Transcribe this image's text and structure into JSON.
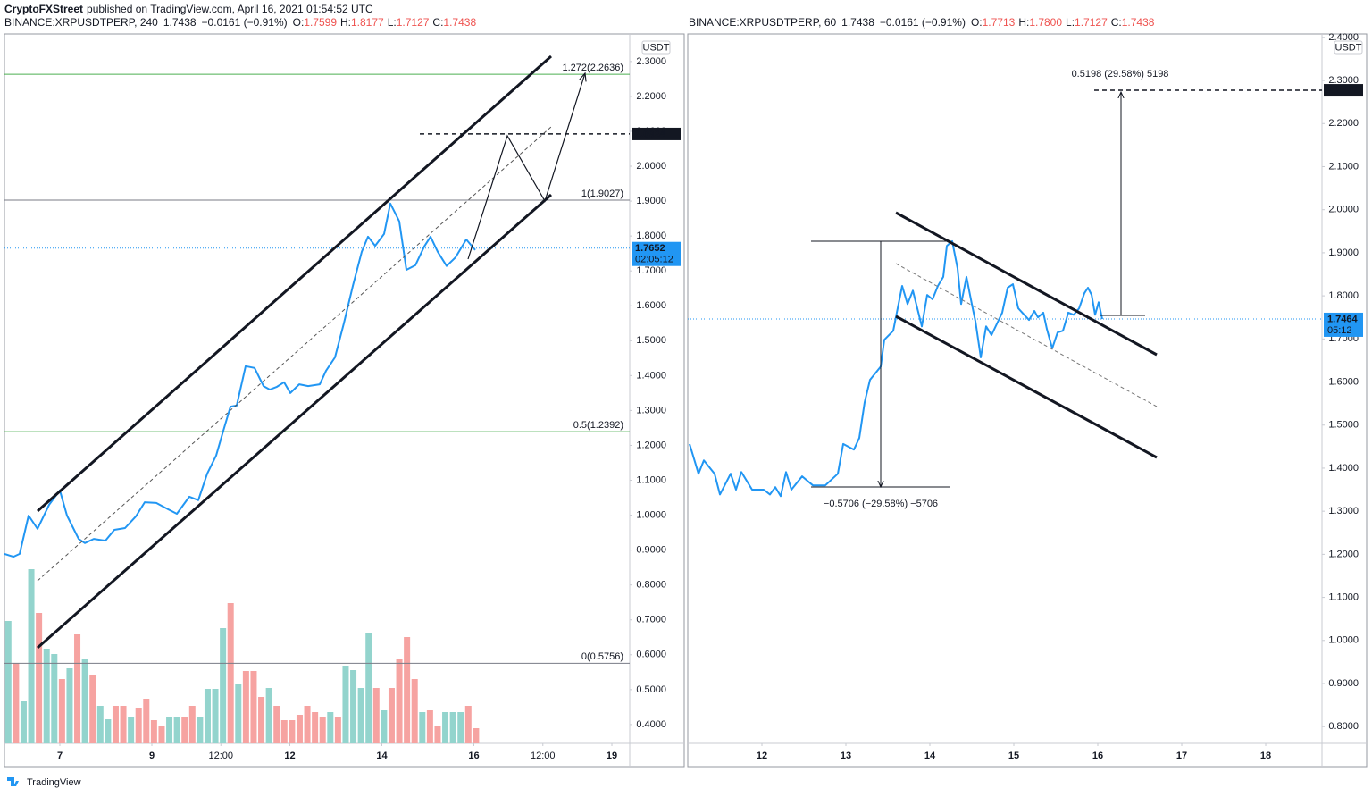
{
  "header": {
    "publisher": "CryptoFXStreet",
    "published": "published on TradingView.com, April 16, 2021 01:54:52 UTC"
  },
  "chart_data": [
    {
      "type": "line",
      "symbol": "BINANCE:XRPUSDTPERP, 240",
      "last": "1.7438",
      "change": "−0.0161 (−0.91%)",
      "ohlc": [
        {
          "label": "O:",
          "value": "1.7599"
        },
        {
          "label": "H:",
          "value": "1.8177"
        },
        {
          "label": "L:",
          "value": "1.7127"
        },
        {
          "label": "C:",
          "value": "1.7438"
        }
      ],
      "axis_unit": "USDT",
      "color": "#2196f3",
      "x": [
        5.796,
        5.99,
        6.126,
        6.32,
        6.515,
        6.767,
        7,
        7.155,
        7.408,
        7.544,
        7.738,
        7.99,
        8.184,
        8.417,
        8.65,
        8.845,
        9.097,
        9.35,
        9.544,
        9.816,
        10.01,
        10.204,
        10.398,
        10.553,
        10.709,
        10.845,
        11.039,
        11.233,
        11.427,
        11.563,
        11.718,
        11.874,
        12.01,
        12.204,
        12.398,
        12.65,
        12.786,
        12.981,
        13.175,
        13.369,
        13.563,
        13.699,
        13.854,
        14.049,
        14.184,
        14.379,
        14.534,
        14.728,
        14.922,
        15.058,
        15.214,
        15.408,
        15.602,
        15.835,
        16.029
      ],
      "values": [
        0.889,
        0.881,
        0.889,
        0.999,
        0.961,
        1.03,
        1.071,
        0.999,
        0.932,
        0.92,
        0.932,
        0.927,
        0.958,
        0.963,
        0.996,
        1.037,
        1.035,
        1.017,
        1.004,
        1.053,
        1.043,
        1.119,
        1.171,
        1.242,
        1.311,
        1.314,
        1.427,
        1.422,
        1.37,
        1.36,
        1.368,
        1.381,
        1.35,
        1.375,
        1.37,
        1.375,
        1.414,
        1.452,
        1.55,
        1.657,
        1.755,
        1.798,
        1.772,
        1.806,
        1.893,
        1.842,
        1.703,
        1.716,
        1.77,
        1.798,
        1.755,
        1.714,
        1.739,
        1.79,
        1.76
      ],
      "xlim": [
        5.796,
        19.388
      ],
      "xticks": [
        7,
        9,
        {
          "value": 10.5,
          "label": "12:00"
        },
        12,
        14,
        16,
        {
          "value": 17.5,
          "label": "12:00"
        },
        19
      ],
      "ylim": [
        0.346,
        2.379
      ],
      "yticks": [
        {
          "value": 0.4,
          "label": "0.4000"
        },
        {
          "value": 0.5,
          "label": "0.5000"
        },
        {
          "value": 0.6,
          "label": "0.6000"
        },
        {
          "value": 0.7,
          "label": "0.7000"
        },
        {
          "value": 0.8,
          "label": "0.8000"
        },
        {
          "value": 0.9,
          "label": "0.9000"
        },
        {
          "value": 1,
          "label": "1.0000"
        },
        {
          "value": 1.1,
          "label": "1.1000"
        },
        {
          "value": 1.2,
          "label": "1.2000"
        },
        {
          "value": 1.3,
          "label": "1.3000"
        },
        {
          "value": 1.4,
          "label": "1.4000"
        },
        {
          "value": 1.5,
          "label": "1.5000"
        },
        {
          "value": 1.6,
          "label": "1.6000"
        },
        {
          "value": 1.7,
          "label": "1.7000"
        },
        {
          "value": 1.8,
          "label": "1.8000"
        },
        {
          "value": 1.9,
          "label": "1.9000"
        },
        {
          "value": 2,
          "label": "2.0000"
        },
        {
          "value": 2.1,
          "label": "2.1000"
        },
        {
          "value": 2.2,
          "label": "2.2000"
        },
        {
          "value": 2.3,
          "label": "2.3000"
        }
      ],
      "levels": [
        {
          "label": "1.272(2.2636)",
          "value": 2.2636,
          "color": "#4caf50"
        },
        {
          "label": "1(1.9027)",
          "value": 1.9027,
          "color": "#787b86"
        },
        {
          "label": "0.5(1.2392)",
          "value": 1.2392,
          "color": "#4caf50"
        },
        {
          "label": "0(0.5756)",
          "value": 0.5756,
          "color": "#787b86"
        }
      ],
      "price_labels": [
        {
          "value": 2.0924,
          "color": "#131722"
        },
        {
          "value": 1.7652,
          "countdown": "02:05:12",
          "color": "#2196f3"
        }
      ],
      "volume": {
        "values": [
          137,
          90,
          47,
          195,
          146,
          106,
          100,
          72,
          84,
          122,
          94,
          76,
          42,
          27,
          42,
          42,
          29,
          40,
          50,
          26,
          20,
          29,
          29,
          30,
          42,
          29,
          61,
          61,
          129,
          157,
          66,
          81,
          81,
          52,
          62,
          42,
          26,
          26,
          32,
          42,
          35,
          29,
          35,
          29,
          87,
          82,
          62,
          124,
          62,
          37,
          62,
          94,
          119,
          72,
          35,
          37,
          20,
          35,
          35,
          35,
          42,
          17
        ],
        "colors": [
          "#93d4cd",
          "#f6a3a1",
          "#93d4cd",
          "#93d4cd",
          "#f6a3a1",
          "#93d4cd",
          "#93d4cd",
          "#f6a3a1",
          "#93d4cd",
          "#f6a3a1",
          "#93d4cd",
          "#f6a3a1",
          "#93d4cd",
          "#93d4cd",
          "#f6a3a1",
          "#f6a3a1",
          "#93d4cd",
          "#f6a3a1",
          "#f6a3a1",
          "#f6a3a1",
          "#f6a3a1",
          "#93d4cd",
          "#93d4cd",
          "#f6a3a1",
          "#f6a3a1",
          "#93d4cd",
          "#93d4cd",
          "#93d4cd",
          "#93d4cd",
          "#f6a3a1",
          "#93d4cd",
          "#f6a3a1",
          "#f6a3a1",
          "#f6a3a1",
          "#93d4cd",
          "#f6a3a1",
          "#f6a3a1",
          "#f6a3a1",
          "#f6a3a1",
          "#f6a3a1",
          "#f6a3a1",
          "#f6a3a1",
          "#93d4cd",
          "#f6a3a1",
          "#93d4cd",
          "#93d4cd",
          "#93d4cd",
          "#93d4cd",
          "#f6a3a1",
          "#93d4cd",
          "#f6a3a1",
          "#f6a3a1",
          "#f6a3a1",
          "#f6a3a1",
          "#93d4cd",
          "#f6a3a1",
          "#f6a3a1",
          "#93d4cd",
          "#93d4cd",
          "#93d4cd",
          "#f6a3a1",
          "#f6a3a1"
        ]
      }
    },
    {
      "type": "line",
      "symbol": "BINANCE:XRPUSDTPERP, 60",
      "last": "1.7438",
      "change": "−0.0161 (−0.91%)",
      "ohlc": [
        {
          "label": "O:",
          "value": "1.7713"
        },
        {
          "label": "H:",
          "value": "1.7800"
        },
        {
          "label": "L:",
          "value": "1.7127"
        },
        {
          "label": "C:",
          "value": "1.7438"
        }
      ],
      "axis_unit": "USDT",
      "color": "#2196f3",
      "x": [
        11.138,
        11.245,
        11.309,
        11.436,
        11.5,
        11.628,
        11.691,
        11.755,
        11.883,
        12.021,
        12.096,
        12.16,
        12.223,
        12.287,
        12.351,
        12.479,
        12.606,
        12.755,
        12.904,
        12.968,
        13.096,
        13.16,
        13.223,
        13.287,
        13.415,
        13.457,
        13.564,
        13.606,
        13.67,
        13.734,
        13.798,
        13.904,
        13.968,
        14.032,
        14.096,
        14.16,
        14.202,
        14.266,
        14.33,
        14.372,
        14.436,
        14.5,
        14.543,
        14.606,
        14.67,
        14.734,
        14.862,
        14.926,
        14.989,
        15.053,
        15.181,
        15.245,
        15.287,
        15.351,
        15.394,
        15.457,
        15.521,
        15.585,
        15.649,
        15.713,
        15.777,
        15.84,
        15.883,
        15.926,
        15.968,
        16.011,
        16.053
      ],
      "values": [
        1.456,
        1.387,
        1.418,
        1.387,
        1.339,
        1.387,
        1.35,
        1.391,
        1.35,
        1.35,
        1.339,
        1.356,
        1.335,
        1.391,
        1.35,
        1.381,
        1.36,
        1.36,
        1.387,
        1.456,
        1.443,
        1.47,
        1.553,
        1.605,
        1.636,
        1.698,
        1.719,
        1.761,
        1.823,
        1.781,
        1.812,
        1.729,
        1.802,
        1.792,
        1.823,
        1.844,
        1.916,
        1.927,
        1.864,
        1.781,
        1.844,
        1.781,
        1.74,
        1.657,
        1.729,
        1.709,
        1.761,
        1.819,
        1.827,
        1.771,
        1.744,
        1.765,
        1.75,
        1.761,
        1.723,
        1.678,
        1.715,
        1.719,
        1.761,
        1.756,
        1.771,
        1.806,
        1.819,
        1.802,
        1.756,
        1.785,
        1.746
      ],
      "xlim": [
        11.117,
        18.67
      ],
      "xticks": [
        12,
        13,
        14,
        15,
        16,
        17,
        18
      ],
      "ylim": [
        0.761,
        2.408
      ],
      "yticks": [
        {
          "value": 0.8,
          "label": "0.8000"
        },
        {
          "value": 0.9,
          "label": "0.9000"
        },
        {
          "value": 1,
          "label": "1.0000"
        },
        {
          "value": 1.1,
          "label": "1.1000"
        },
        {
          "value": 1.2,
          "label": "1.2000"
        },
        {
          "value": 1.3,
          "label": "1.3000"
        },
        {
          "value": 1.4,
          "label": "1.4000"
        },
        {
          "value": 1.5,
          "label": "1.5000"
        },
        {
          "value": 1.6,
          "label": "1.6000"
        },
        {
          "value": 1.7,
          "label": "1.7000"
        },
        {
          "value": 1.8,
          "label": "1.8000"
        },
        {
          "value": 1.9,
          "label": "1.9000"
        },
        {
          "value": 2,
          "label": "2.0000"
        },
        {
          "value": 2.1,
          "label": "2.1000"
        },
        {
          "value": 2.2,
          "label": "2.2000"
        },
        {
          "value": 2.3,
          "label": "2.3000"
        },
        {
          "value": 2.4,
          "label": "2.4000"
        }
      ],
      "price_labels": [
        {
          "value": 2.2772,
          "color": "#131722"
        },
        {
          "value": 1.7464,
          "countdown": "05:12",
          "color": "#2196f3"
        }
      ],
      "measures": [
        "0.5198 (29.58%) 5198",
        "−0.5706 (−29.58%) −5706"
      ]
    }
  ],
  "footer": {
    "brand": "TradingView"
  }
}
